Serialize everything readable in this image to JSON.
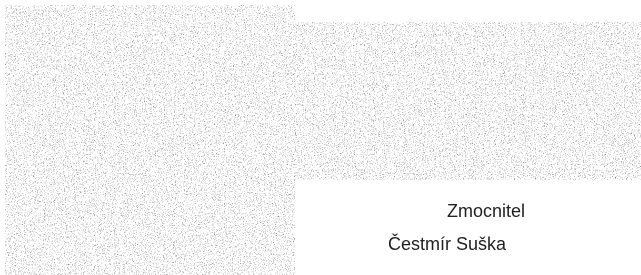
{
  "signature": {
    "role": "Zmocnitel",
    "name": "Čestmír Suška"
  }
}
